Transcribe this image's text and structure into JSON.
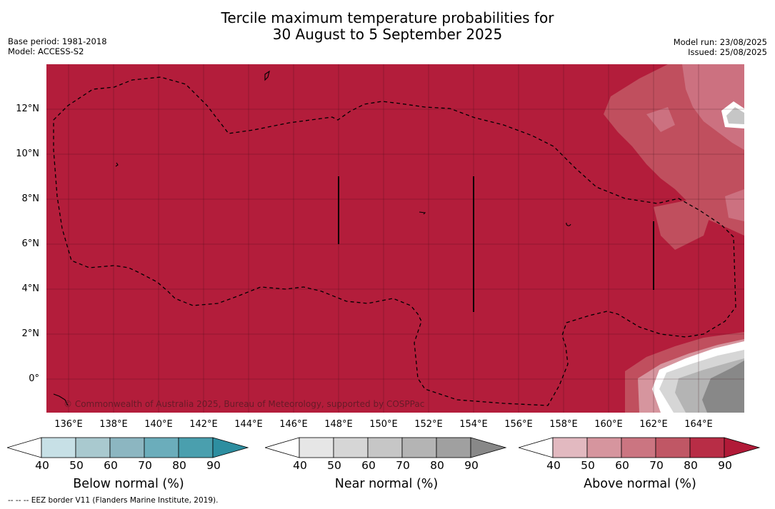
{
  "title_line1": "Tercile maximum temperature probabilities for",
  "title_line2": "30 August to 5 September 2025",
  "meta_left": {
    "base_period": "Base period: 1981-2018",
    "model": "Model: ACCESS-S2"
  },
  "meta_right": {
    "model_run": "Model run: 23/08/2025",
    "issued": "Issued: 25/08/2025"
  },
  "map": {
    "lat_labels": [
      "12°N",
      "10°N",
      "8°N",
      "6°N",
      "4°N",
      "2°N",
      "0°"
    ],
    "lon_labels": [
      "136°E",
      "138°E",
      "140°E",
      "142°E",
      "144°E",
      "146°E",
      "148°E",
      "150°E",
      "152°E",
      "154°E",
      "156°E",
      "158°E",
      "160°E",
      "162°E",
      "164°E"
    ],
    "credit": "© Commonwealth of Australia 2025, Bureau of Meteorology, supported by COSPPac",
    "base_color": "#b31d3b"
  },
  "colorbars": [
    {
      "label": "Below normal (%)",
      "ticks": [
        "40",
        "50",
        "60",
        "70",
        "80",
        "90"
      ],
      "colors": [
        "#ffffff",
        "#c7e0e6",
        "#a9c9cf",
        "#8cb6c1",
        "#6badbb",
        "#4a9fae",
        "#2d8ea0"
      ]
    },
    {
      "label": "Near normal (%)",
      "ticks": [
        "40",
        "50",
        "60",
        "70",
        "80",
        "90"
      ],
      "colors": [
        "#ffffff",
        "#e6e6e6",
        "#d6d6d6",
        "#c6c6c6",
        "#b4b4b4",
        "#a0a0a0",
        "#888888"
      ]
    },
    {
      "label": "Above normal (%)",
      "ticks": [
        "40",
        "50",
        "60",
        "70",
        "80",
        "90"
      ],
      "colors": [
        "#ffffff",
        "#e2b9c0",
        "#d6959e",
        "#cb7581",
        "#c05765",
        "#b82d46",
        "#b11a38"
      ]
    }
  ],
  "footnote": "--  --  -- EEZ border V11 (Flanders Marine Institute, 2019)."
}
